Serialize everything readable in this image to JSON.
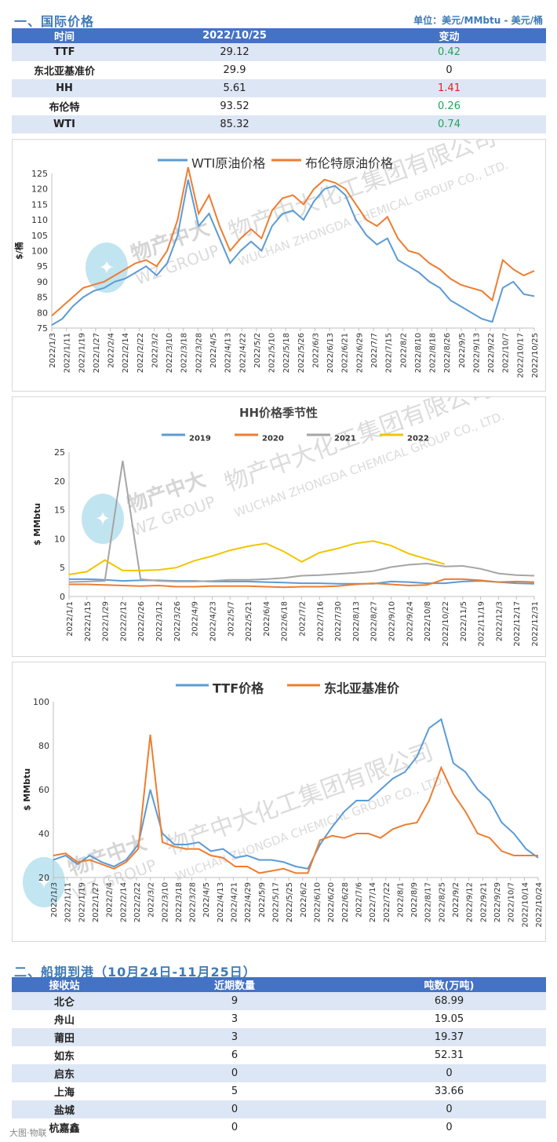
{
  "section1": {
    "title": "一、国际价格",
    "unit": "单位：美元/MMbtu - 美元/桶",
    "headers": [
      "时间",
      "2022/10/25",
      "变动"
    ],
    "rows": [
      {
        "name": "TTF",
        "price": "29.12",
        "change": "0.42",
        "change_color": "#22a35a"
      },
      {
        "name": "东北亚基准价",
        "price": "29.9",
        "change": "0",
        "change_color": "#222222"
      },
      {
        "name": "HH",
        "price": "5.61",
        "change": "1.41",
        "change_color": "#e02020"
      },
      {
        "name": "布伦特",
        "price": "93.52",
        "change": "0.26",
        "change_color": "#22a35a"
      },
      {
        "name": "WTI",
        "price": "85.32",
        "change": "0.74",
        "change_color": "#22a35a"
      }
    ]
  },
  "section2": {
    "title": "二、船期到港（10月24日-11月25日）",
    "headers": [
      "接收站",
      "近期数量",
      "吨数(万吨)"
    ],
    "rows": [
      {
        "name": "北仑",
        "count": "9",
        "tons": "68.99"
      },
      {
        "name": "舟山",
        "count": "3",
        "tons": "19.05"
      },
      {
        "name": "莆田",
        "count": "3",
        "tons": "19.37"
      },
      {
        "name": "如东",
        "count": "6",
        "tons": "52.31"
      },
      {
        "name": "启东",
        "count": "0",
        "tons": "0"
      },
      {
        "name": "上海",
        "count": "5",
        "tons": "33.66"
      },
      {
        "name": "盐城",
        "count": "0",
        "tons": "0"
      },
      {
        "name": "杭嘉鑫",
        "count": "0",
        "tons": "0"
      }
    ]
  },
  "watermark": {
    "company": "物产中大化工集团有限公司",
    "company_en": "WUCHAN ZHONGDA CHEMICAL GROUP CO., LTD.",
    "brand": "物产中大",
    "brand_en": "WZ GROUP"
  },
  "footer": {
    "text": "大图·物联"
  },
  "chart_data": [
    {
      "type": "line",
      "title": "",
      "ylabel": "$/桶",
      "ylim": [
        75,
        125
      ],
      "yticks": [
        75,
        80,
        85,
        90,
        95,
        100,
        105,
        110,
        115,
        120,
        125
      ],
      "xticks": [
        "2022/1/3",
        "2022/1/11",
        "2022/1/19",
        "2022/1/27",
        "2022/2/4",
        "2022/2/14",
        "2022/2/22",
        "2022/3/2",
        "2022/3/10",
        "2022/3/18",
        "2022/3/28",
        "2022/4/5",
        "2022/4/13",
        "2022/4/22",
        "2022/5/2",
        "2022/5/10",
        "2022/5/18",
        "2022/5/26",
        "2022/6/3",
        "2022/6/13",
        "2022/6/21",
        "2022/6/29",
        "2022/7/7",
        "2022/7/15",
        "2022/8/2",
        "2022/8/10",
        "2022/8/18",
        "2022/8/26",
        "2022/9/5",
        "2022/9/13",
        "2022/9/22",
        "2022/10/7",
        "2022/10/17",
        "2022/10/25"
      ],
      "series": [
        {
          "name": "WTI原油价格",
          "color": "#5b9bd5",
          "values": [
            76,
            78,
            82,
            85,
            87,
            88,
            90,
            91,
            93,
            95,
            92,
            96,
            105,
            123,
            108,
            112,
            104,
            96,
            100,
            103,
            100,
            108,
            112,
            113,
            110,
            116,
            120,
            121,
            118,
            110,
            105,
            102,
            104,
            97,
            95,
            93,
            90,
            88,
            84,
            82,
            80,
            78,
            77,
            88,
            90,
            86,
            85.3
          ]
        },
        {
          "name": "布伦特原油价格",
          "color": "#ed7d31",
          "values": [
            79,
            82,
            85,
            88,
            89,
            90,
            92,
            94,
            96,
            97,
            95,
            100,
            110,
            127,
            112,
            118,
            108,
            100,
            104,
            107,
            104,
            113,
            117,
            118,
            115,
            120,
            123,
            122,
            120,
            115,
            110,
            108,
            111,
            104,
            100,
            99,
            96,
            94,
            91,
            89,
            88,
            87,
            84,
            97,
            94,
            92,
            93.5
          ]
        }
      ]
    },
    {
      "type": "line",
      "title": "HH价格季节性",
      "ylabel": "$ MMbtu",
      "ylim": [
        0,
        25
      ],
      "yticks": [
        0,
        5,
        10,
        15,
        20,
        25
      ],
      "xticks": [
        "2022/1/1",
        "2022/1/15",
        "2022/1/29",
        "2022/2/12",
        "2022/2/26",
        "2022/3/12",
        "2022/3/26",
        "2022/4/9",
        "2022/4/23",
        "2022/5/7",
        "2022/5/21",
        "2022/6/4",
        "2022/6/18",
        "2022/7/2",
        "2022/7/16",
        "2022/7/30",
        "2022/8/13",
        "2022/8/27",
        "2022/9/10",
        "2022/9/24",
        "2022/10/8",
        "2022/10/22",
        "2022/11/5",
        "2022/11/19",
        "2022/12/3",
        "2022/12/17",
        "2022/12/31"
      ],
      "series": [
        {
          "name": "2019",
          "color": "#5b9bd5",
          "values": [
            3.0,
            3.0,
            2.9,
            2.7,
            2.8,
            2.8,
            2.7,
            2.7,
            2.6,
            2.6,
            2.6,
            2.5,
            2.4,
            2.3,
            2.3,
            2.2,
            2.2,
            2.2,
            2.6,
            2.5,
            2.3,
            2.3,
            2.6,
            2.7,
            2.5,
            2.3,
            2.2
          ]
        },
        {
          "name": "2020",
          "color": "#ed7d31",
          "values": [
            2.1,
            2.1,
            2.0,
            1.9,
            1.8,
            1.9,
            1.7,
            1.7,
            1.8,
            1.8,
            1.8,
            1.7,
            1.6,
            1.7,
            1.7,
            1.8,
            2.1,
            2.3,
            2.1,
            1.9,
            2.0,
            3.0,
            3.0,
            2.8,
            2.5,
            2.6,
            2.5
          ]
        },
        {
          "name": "2021",
          "color": "#a5a5a5",
          "values": [
            2.5,
            2.6,
            2.7,
            23.5,
            3.0,
            2.7,
            2.6,
            2.6,
            2.7,
            2.9,
            2.9,
            3.0,
            3.2,
            3.6,
            3.7,
            3.9,
            4.1,
            4.4,
            5.1,
            5.5,
            5.7,
            5.2,
            5.3,
            4.8,
            4.0,
            3.7,
            3.6
          ]
        },
        {
          "name": "2022",
          "color": "#f2c500",
          "values": [
            3.8,
            4.3,
            6.3,
            4.5,
            4.5,
            4.6,
            5.0,
            6.2,
            7.0,
            8.0,
            8.7,
            9.2,
            7.8,
            6.0,
            7.6,
            8.3,
            9.2,
            9.6,
            8.8,
            7.4,
            6.5,
            5.6
          ]
        }
      ]
    },
    {
      "type": "line",
      "title": "",
      "ylabel": "$ MMbtu",
      "ylim": [
        20,
        100
      ],
      "yticks": [
        20,
        40,
        60,
        80,
        100
      ],
      "xticks": [
        "2022/1/3",
        "2022/1/11",
        "2022/1/19",
        "2022/1/27",
        "2022/2/4",
        "2022/2/14",
        "2022/2/22",
        "2022/3/2",
        "2022/3/10",
        "2022/3/18",
        "2022/3/28",
        "2022/4/5",
        "2022/4/13",
        "2022/4/21",
        "2022/4/29",
        "2022/5/9",
        "2022/5/17",
        "2022/5/25",
        "2022/6/2",
        "2022/6/10",
        "2022/6/20",
        "2022/6/28",
        "2022/7/6",
        "2022/7/14",
        "2022/7/22",
        "2022/8/1",
        "2022/8/9",
        "2022/8/17",
        "2022/8/25",
        "2022/9/2",
        "2022/9/12",
        "2022/9/21",
        "2022/9/29",
        "2022/10/7",
        "2022/10/14",
        "2022/10/24"
      ],
      "series": [
        {
          "name": "TTF价格",
          "color": "#5b9bd5",
          "values": [
            28,
            30,
            26,
            30,
            27,
            25,
            28,
            35,
            60,
            40,
            35,
            35,
            36,
            32,
            33,
            29,
            30,
            28,
            28,
            27,
            25,
            24,
            35,
            43,
            50,
            55,
            55,
            60,
            65,
            68,
            75,
            88,
            92,
            72,
            68,
            60,
            55,
            45,
            40,
            33,
            29
          ]
        },
        {
          "name": "东北亚基准价",
          "color": "#ed7d31",
          "values": [
            30,
            31,
            27,
            28,
            26,
            24,
            27,
            33,
            85,
            36,
            34,
            33,
            33,
            30,
            29,
            25,
            25,
            22,
            23,
            24,
            22,
            22,
            37,
            39,
            38,
            40,
            40,
            38,
            42,
            44,
            45,
            55,
            70,
            58,
            50,
            40,
            38,
            32,
            30,
            30,
            30
          ]
        }
      ]
    }
  ]
}
